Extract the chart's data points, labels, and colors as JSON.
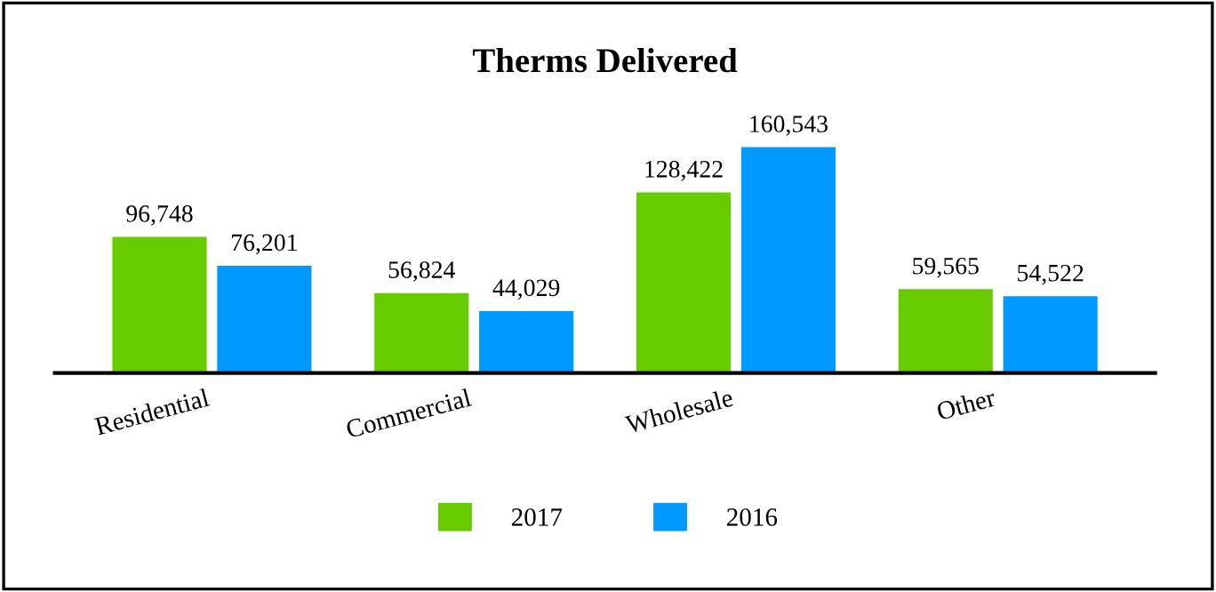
{
  "chart_data": {
    "type": "bar",
    "title": "Therms Delivered",
    "categories": [
      "Residential",
      "Commercial",
      "Wholesale",
      "Other"
    ],
    "series": [
      {
        "name": "2017",
        "color": "#66cc00",
        "values": [
          96748,
          56824,
          128422,
          59565
        ],
        "value_labels": [
          "96,748",
          "56,824",
          "128,422",
          "59,565"
        ]
      },
      {
        "name": "2016",
        "color": "#0099ff",
        "values": [
          76201,
          44029,
          160543,
          54522
        ],
        "value_labels": [
          "76,201",
          "44,029",
          "160,543",
          "54,522"
        ]
      }
    ],
    "legend": "bottom",
    "grid": false
  }
}
